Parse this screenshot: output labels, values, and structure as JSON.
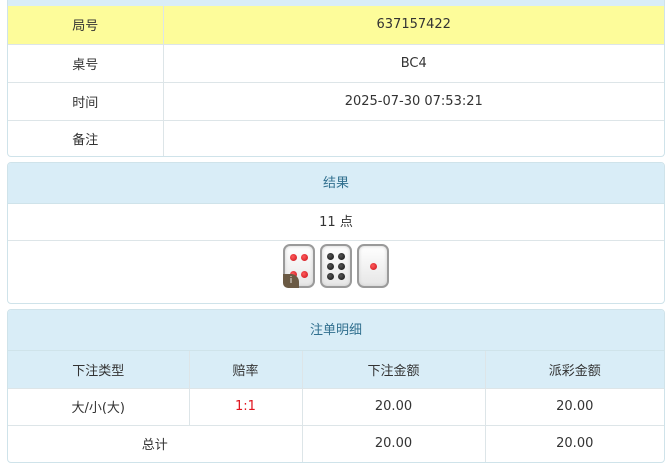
{
  "info": {
    "rows": [
      {
        "label": "局号",
        "value": "637157422"
      },
      {
        "label": "桌号",
        "value": "BC4"
      },
      {
        "label": "时间",
        "value": "2025-07-30 07:53:21"
      },
      {
        "label": "备注",
        "value": ""
      }
    ]
  },
  "result": {
    "title": "结果",
    "points_text": "11 点",
    "dice": [
      {
        "value": 4,
        "pip_color": "#c8101a",
        "badge": "i"
      },
      {
        "value": 6,
        "pip_color": "#111111"
      },
      {
        "value": 1,
        "pip_color": "#c8101a"
      }
    ]
  },
  "bets": {
    "title": "注单明细",
    "columns": [
      "下注类型",
      "赔率",
      "下注金额",
      "派彩金额"
    ],
    "rows": [
      {
        "type": "大/小(大)",
        "odds": "1:1",
        "amount": "20.00",
        "payout": "20.00"
      }
    ],
    "total": {
      "label": "总计",
      "amount": "20.00",
      "payout": "20.00"
    }
  },
  "colors": {
    "highlight_row": "#fdfc9a",
    "header_bg": "#d9edf7",
    "odds_red": "#e0141e"
  }
}
